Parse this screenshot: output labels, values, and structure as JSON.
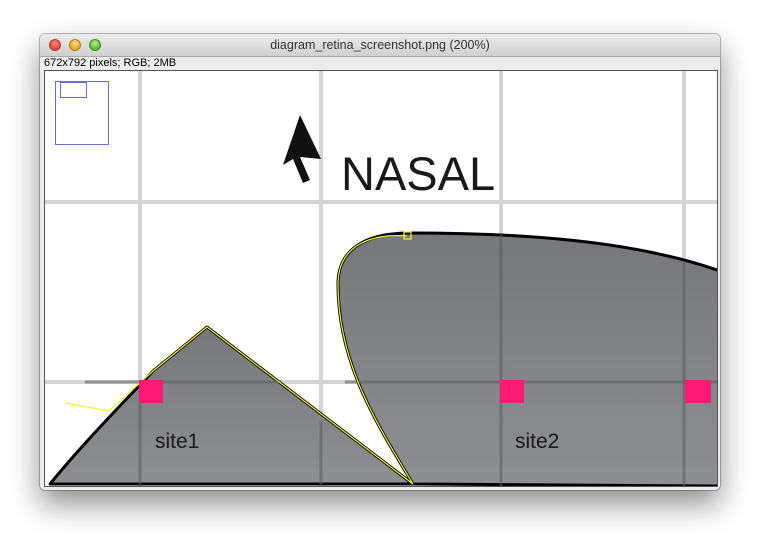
{
  "window": {
    "title": "diagram_retina_screenshot.png (200%)",
    "info": "672x792 pixels; RGB; 2MB"
  },
  "image": {
    "nasal_label": "NASAL",
    "sites": [
      {
        "label": "site1"
      },
      {
        "label": "site2"
      }
    ],
    "colors": {
      "retina_fill": "#7d7e80",
      "grid_line": "#d4d4d4",
      "marker": "#ff1a75",
      "selection": "#f5f52a",
      "navigator": "#6a6ae0"
    }
  }
}
